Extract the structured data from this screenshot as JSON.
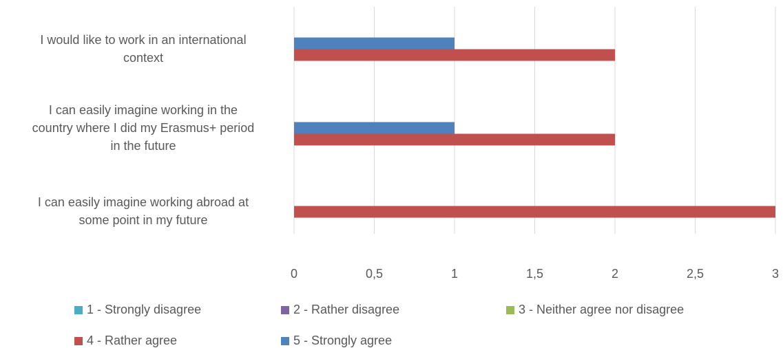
{
  "chart_data": {
    "type": "bar",
    "orientation": "horizontal",
    "categories": [
      "I would like to work in an international context",
      "I can easily imagine working in the country where I did my Erasmus+ period in the future",
      "I can easily imagine working abroad at some point in my future"
    ],
    "category_lines": [
      [
        "I would like to work in an international",
        "context"
      ],
      [
        "I can easily imagine working in the",
        "country where I did my Erasmus+ period",
        "in the future"
      ],
      [
        "I can easily imagine working abroad at",
        "some point in my future"
      ]
    ],
    "series": [
      {
        "name": "1 - Strongly disagree",
        "color": "#4bacc6",
        "values": [
          0,
          0,
          0
        ]
      },
      {
        "name": "2 - Rather disagree",
        "color": "#8064a2",
        "values": [
          0,
          0,
          0
        ]
      },
      {
        "name": "3 - Neither agree nor disagree",
        "color": "#9bbb59",
        "values": [
          0,
          0,
          0
        ]
      },
      {
        "name": "4 - Rather agree",
        "color": "#c0504d",
        "values": [
          2,
          2,
          3
        ]
      },
      {
        "name": "5 - Strongly agree",
        "color": "#4f81bd",
        "values": [
          1,
          1,
          0
        ]
      }
    ],
    "xlim": [
      0,
      3
    ],
    "x_ticks": [
      "0",
      "0,5",
      "1",
      "1,5",
      "2",
      "2,5",
      "3"
    ],
    "grid": true,
    "legend_position": "bottom"
  }
}
